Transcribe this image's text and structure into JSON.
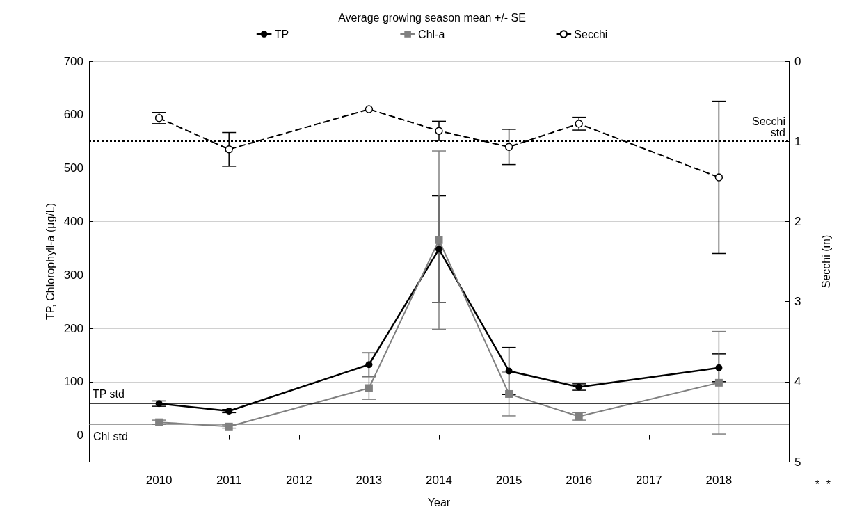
{
  "chart_data": {
    "type": "line",
    "legend_title": "Average growing season mean +/- SE",
    "xlabel": "Year",
    "ylabel": "TP, Chlorophyll-a (µg/L)",
    "y2label": "Secchi (m)",
    "x": [
      2010,
      2011,
      2013,
      2014,
      2015,
      2016,
      2018
    ],
    "xlim": [
      2009,
      2019
    ],
    "xticks": [
      2010,
      2011,
      2012,
      2013,
      2014,
      2015,
      2016,
      2017,
      2018
    ],
    "ylim": [
      -50,
      700
    ],
    "yticks": [
      0,
      100,
      200,
      300,
      400,
      500,
      600,
      700
    ],
    "y2lim": [
      5,
      0
    ],
    "y2ticks": [
      0,
      1,
      2,
      3,
      4,
      5
    ],
    "grid": "y",
    "legend": "top",
    "series": [
      {
        "name": "TP",
        "color": "#000000",
        "marker": "circle",
        "line_style": "solid",
        "values": [
          59,
          45,
          132,
          348,
          120,
          90,
          126
        ],
        "errors": [
          5,
          3,
          22,
          100,
          44,
          6,
          26
        ]
      },
      {
        "name": "Chl-a",
        "color": "#808080",
        "marker": "square",
        "line_style": "solid",
        "values": [
          24,
          16,
          88,
          365,
          77,
          35,
          98
        ],
        "errors": [
          4,
          3,
          21,
          167,
          41,
          7,
          96
        ]
      },
      {
        "name": "Secchi",
        "color": "#000000",
        "marker": "circle",
        "line_style": "dashed",
        "axis": "y2",
        "values": [
          0.71,
          1.1,
          0.6,
          0.87,
          1.07,
          0.78,
          1.45
        ],
        "errors": [
          0.07,
          0.21,
          null,
          0.12,
          0.22,
          0.08,
          0.95
        ]
      }
    ],
    "ref_lines": [
      {
        "axis": "y",
        "value": 60,
        "label": "TP std",
        "color": "#000000",
        "line_style": "solid"
      },
      {
        "axis": "y",
        "value": 20,
        "label": "Chl std",
        "color": "#808080",
        "line_style": "solid"
      },
      {
        "axis": "y2",
        "value": 1,
        "label": "Secchi std",
        "color": "#000000",
        "line_style": "dotted"
      }
    ],
    "annotations": [
      "*",
      "*"
    ]
  }
}
